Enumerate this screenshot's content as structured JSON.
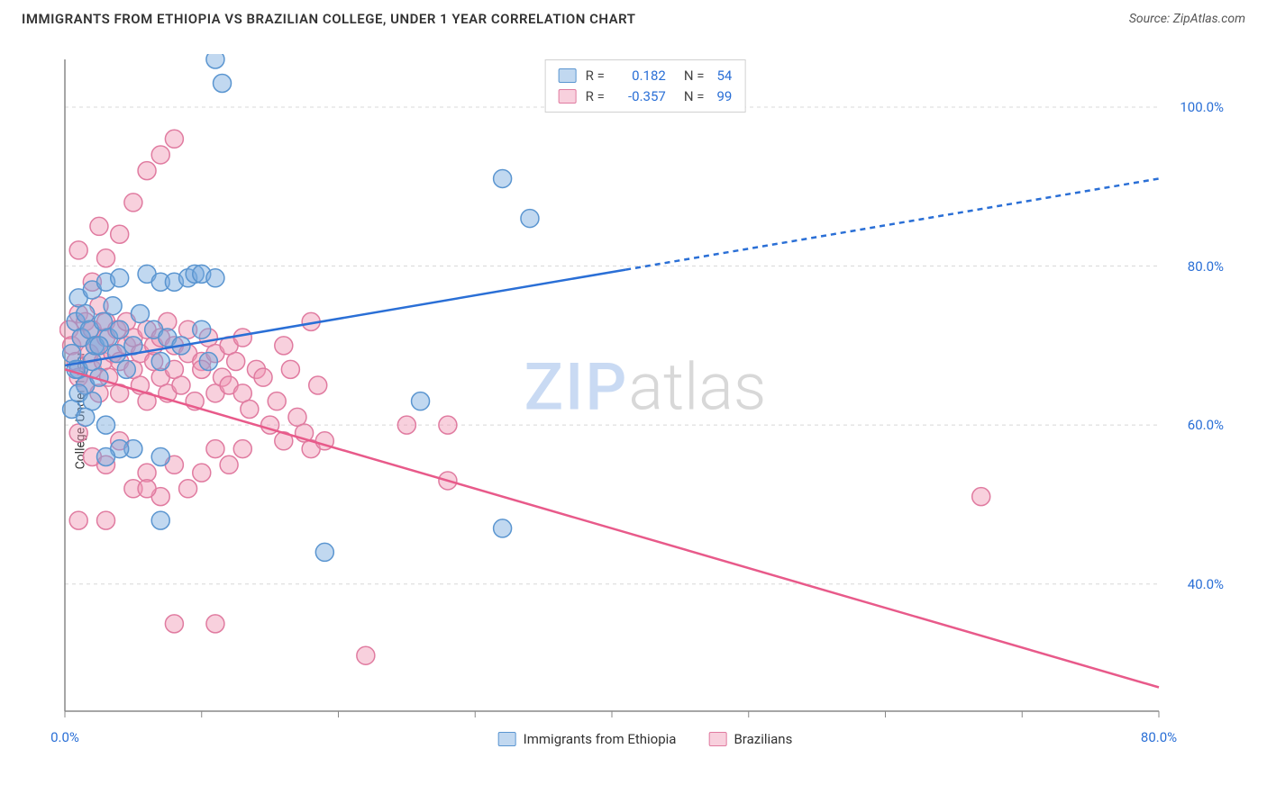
{
  "title": "IMMIGRANTS FROM ETHIOPIA VS BRAZILIAN COLLEGE, UNDER 1 YEAR CORRELATION CHART",
  "source_label": "Source: ",
  "source_name": "ZipAtlas.com",
  "ylabel": "College, Under 1 year",
  "watermark_zip": "ZIP",
  "watermark_atlas": "atlas",
  "chart": {
    "type": "scatter",
    "xlim": [
      0,
      80
    ],
    "ylim": [
      24,
      106
    ],
    "xticks": [
      0,
      10,
      20,
      30,
      40,
      50,
      60,
      70,
      80
    ],
    "xtick_labels": {
      "0": "0.0%",
      "80": "80.0%"
    },
    "yticks": [
      40,
      60,
      80,
      100
    ],
    "ytick_labels": {
      "40": "40.0%",
      "60": "60.0%",
      "80": "80.0%",
      "100": "100.0%"
    },
    "grid_color": "#d8d8d8",
    "grid_dash": "4,4",
    "axis_color": "#888",
    "background_color": "#ffffff",
    "series": [
      {
        "name": "Immigrants from Ethiopia",
        "color_fill": "rgba(117,169,222,0.45)",
        "color_stroke": "#5a95d0",
        "marker_radius": 10,
        "R_label": "R =",
        "R_value": "0.182",
        "N_label": "N =",
        "N_value": "54",
        "trend": {
          "x1": 0,
          "y1": 67.5,
          "x2": 80,
          "y2": 91,
          "solid_until_x": 41,
          "stroke": "#2a6fd6",
          "stroke_width": 2.5,
          "dash": "6,5"
        },
        "points": [
          [
            0.5,
            69
          ],
          [
            0.8,
            73
          ],
          [
            1,
            76
          ],
          [
            1,
            67
          ],
          [
            1.2,
            71
          ],
          [
            1.5,
            65
          ],
          [
            1.5,
            74
          ],
          [
            1.8,
            72
          ],
          [
            2,
            68
          ],
          [
            2,
            77
          ],
          [
            2.2,
            70
          ],
          [
            2.5,
            66
          ],
          [
            2.8,
            73
          ],
          [
            3,
            78
          ],
          [
            3,
            60
          ],
          [
            3.2,
            71
          ],
          [
            3.5,
            75
          ],
          [
            3.8,
            69
          ],
          [
            4,
            72
          ],
          [
            4,
            78.5
          ],
          [
            4.5,
            67
          ],
          [
            5,
            70
          ],
          [
            5,
            57
          ],
          [
            5.5,
            74
          ],
          [
            6,
            79
          ],
          [
            6.5,
            72
          ],
          [
            7,
            78
          ],
          [
            7,
            68
          ],
          [
            7.5,
            71
          ],
          [
            8,
            78
          ],
          [
            8.5,
            70
          ],
          [
            9,
            78.5
          ],
          [
            9.5,
            79
          ],
          [
            10,
            79
          ],
          [
            10,
            72
          ],
          [
            10.5,
            68
          ],
          [
            11,
            78.5
          ],
          [
            7,
            48
          ],
          [
            4,
            57
          ],
          [
            3,
            56
          ],
          [
            7,
            56
          ],
          [
            19,
            44
          ],
          [
            11,
            106
          ],
          [
            11.5,
            103
          ],
          [
            26,
            63
          ],
          [
            32,
            91
          ],
          [
            32,
            47
          ],
          [
            34,
            86
          ],
          [
            1,
            64
          ],
          [
            2,
            63
          ],
          [
            0.5,
            62
          ],
          [
            1.5,
            61
          ],
          [
            2.5,
            70
          ],
          [
            0.8,
            67
          ]
        ]
      },
      {
        "name": "Brazilians",
        "color_fill": "rgba(240,150,180,0.45)",
        "color_stroke": "#e07ba0",
        "marker_radius": 10,
        "R_label": "R =",
        "R_value": "-0.357",
        "N_label": "N =",
        "N_value": "99",
        "trend": {
          "x1": 0,
          "y1": 67,
          "x2": 80,
          "y2": 27,
          "solid_until_x": 80,
          "stroke": "#e85a8a",
          "stroke_width": 2.5,
          "dash": ""
        },
        "points": [
          [
            0.3,
            72
          ],
          [
            0.5,
            70
          ],
          [
            0.8,
            68
          ],
          [
            1,
            74
          ],
          [
            1,
            66
          ],
          [
            1.2,
            71
          ],
          [
            1.5,
            73
          ],
          [
            1.5,
            65
          ],
          [
            1.8,
            69
          ],
          [
            2,
            72
          ],
          [
            2,
            67
          ],
          [
            2.2,
            70
          ],
          [
            2.5,
            75
          ],
          [
            2.5,
            64
          ],
          [
            2.8,
            68
          ],
          [
            3,
            71
          ],
          [
            3,
            73
          ],
          [
            3.2,
            66
          ],
          [
            3.5,
            69
          ],
          [
            3.8,
            72
          ],
          [
            4,
            68
          ],
          [
            4,
            64
          ],
          [
            4.5,
            70
          ],
          [
            4.5,
            73
          ],
          [
            5,
            67
          ],
          [
            5,
            71
          ],
          [
            5.5,
            65
          ],
          [
            5.5,
            69
          ],
          [
            6,
            72
          ],
          [
            6,
            63
          ],
          [
            6.5,
            68
          ],
          [
            6.5,
            70
          ],
          [
            7,
            66
          ],
          [
            7,
            71
          ],
          [
            7.5,
            64
          ],
          [
            7.5,
            73
          ],
          [
            8,
            67
          ],
          [
            8,
            70
          ],
          [
            8.5,
            65
          ],
          [
            9,
            69
          ],
          [
            9,
            72
          ],
          [
            9.5,
            63
          ],
          [
            10,
            68
          ],
          [
            10,
            67
          ],
          [
            10.5,
            71
          ],
          [
            11,
            64
          ],
          [
            11,
            69
          ],
          [
            11.5,
            66
          ],
          [
            12,
            70
          ],
          [
            12,
            65
          ],
          [
            12.5,
            68
          ],
          [
            13,
            64
          ],
          [
            13,
            71
          ],
          [
            13.5,
            62
          ],
          [
            14,
            67
          ],
          [
            14.5,
            66
          ],
          [
            15,
            60
          ],
          [
            15.5,
            63
          ],
          [
            16,
            58
          ],
          [
            16.5,
            67
          ],
          [
            17,
            61
          ],
          [
            17.5,
            59
          ],
          [
            18,
            57
          ],
          [
            18.5,
            65
          ],
          [
            19,
            58
          ],
          [
            1,
            82
          ],
          [
            2,
            78
          ],
          [
            3,
            81
          ],
          [
            4,
            84
          ],
          [
            2.5,
            85
          ],
          [
            5,
            88
          ],
          [
            6,
            92
          ],
          [
            7,
            94
          ],
          [
            8,
            96
          ],
          [
            1,
            59
          ],
          [
            2,
            56
          ],
          [
            3,
            55
          ],
          [
            4,
            58
          ],
          [
            5,
            52
          ],
          [
            6,
            54
          ],
          [
            7,
            51
          ],
          [
            8,
            55
          ],
          [
            9,
            52
          ],
          [
            10,
            54
          ],
          [
            11,
            57
          ],
          [
            12,
            55
          ],
          [
            1,
            48
          ],
          [
            3,
            48
          ],
          [
            6,
            52
          ],
          [
            8,
            35
          ],
          [
            11,
            35
          ],
          [
            22,
            31
          ],
          [
            25,
            60
          ],
          [
            28,
            53
          ],
          [
            28,
            60
          ],
          [
            16,
            70
          ],
          [
            18,
            73
          ],
          [
            67,
            51
          ],
          [
            13,
            57
          ]
        ]
      }
    ]
  },
  "legend_bottom": [
    {
      "swatch": "blue",
      "label": "Immigrants from Ethiopia"
    },
    {
      "swatch": "pink",
      "label": "Brazilians"
    }
  ]
}
